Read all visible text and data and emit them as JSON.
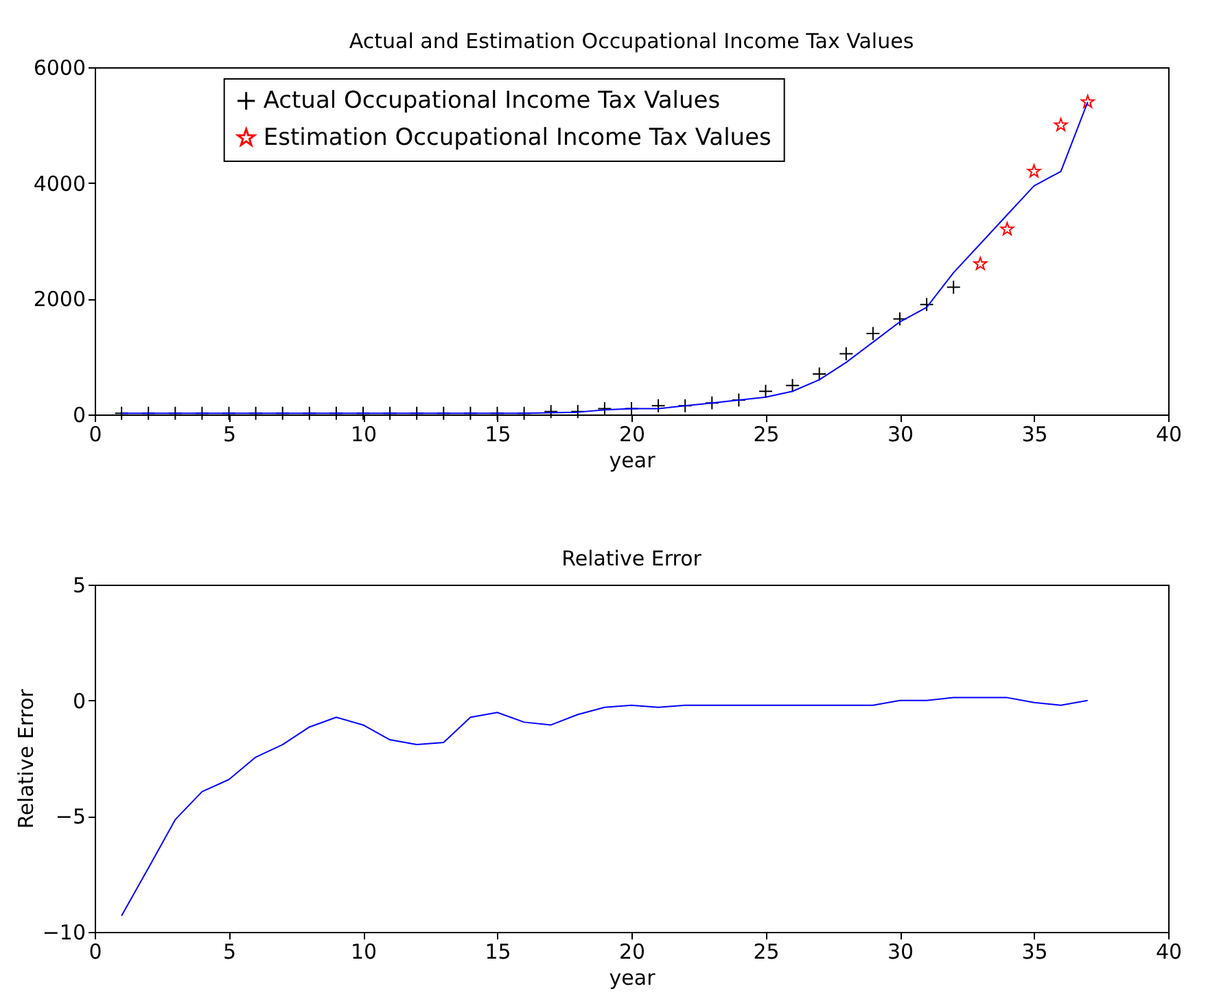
{
  "chart_data": [
    {
      "type": "scatter",
      "title": "Actual and Estimation Occupational Income Tax Values",
      "xlabel": "year",
      "xlim": [
        0,
        40
      ],
      "xticks": [
        0,
        5,
        10,
        15,
        20,
        25,
        30,
        35,
        40
      ],
      "ylim": [
        0,
        6000
      ],
      "yticks": [
        0,
        2000,
        4000,
        6000
      ],
      "grid": false,
      "legend": "top",
      "series": [
        {
          "name": "Actual Occupational Income Tax Values",
          "marker": "cross",
          "color": "#000000",
          "x": [
            1,
            2,
            3,
            4,
            5,
            6,
            7,
            8,
            9,
            10,
            11,
            12,
            13,
            14,
            15,
            16,
            17,
            18,
            19,
            20,
            21,
            22,
            23,
            24,
            25,
            26,
            27,
            28,
            29,
            30,
            31,
            32
          ],
          "values": [
            20,
            20,
            20,
            20,
            20,
            20,
            20,
            20,
            20,
            20,
            20,
            20,
            20,
            20,
            20,
            20,
            50,
            50,
            100,
            100,
            150,
            150,
            200,
            250,
            400,
            500,
            700,
            1050,
            1400,
            1650,
            1900,
            2200
          ]
        },
        {
          "name": "Estimation Occupational Income Tax Values",
          "marker": "star",
          "color": "#ff0000",
          "x": [
            33,
            34,
            35,
            36,
            37
          ],
          "values": [
            2600,
            3200,
            4200,
            5000,
            5400
          ]
        },
        {
          "type": "line",
          "color": "#0000ff",
          "line_style": "solid",
          "marker": "none",
          "x": [
            1,
            2,
            3,
            4,
            5,
            6,
            7,
            8,
            9,
            10,
            11,
            12,
            13,
            14,
            15,
            16,
            17,
            18,
            19,
            20,
            21,
            22,
            23,
            24,
            25,
            26,
            27,
            28,
            29,
            30,
            31,
            32,
            33,
            34,
            35,
            36,
            37
          ],
          "values": [
            20,
            20,
            20,
            20,
            20,
            20,
            20,
            20,
            20,
            20,
            20,
            20,
            20,
            20,
            20,
            20,
            30,
            40,
            80,
            100,
            100,
            150,
            200,
            250,
            300,
            400,
            600,
            900,
            1250,
            1600,
            1850,
            2450,
            2950,
            3450,
            3950,
            4200,
            5400
          ]
        }
      ]
    },
    {
      "type": "line",
      "title": "Relative Error",
      "xlabel": "year",
      "ylabel": "Relative Error",
      "xlim": [
        0,
        40
      ],
      "xticks": [
        0,
        5,
        10,
        15,
        20,
        25,
        30,
        35,
        40
      ],
      "ylim": [
        -10,
        5
      ],
      "yticks": [
        -10,
        -5,
        0,
        5
      ],
      "grid": false,
      "legend": false,
      "series": [
        {
          "color": "#0000ff",
          "line_style": "solid",
          "marker": "none",
          "x": [
            1,
            2,
            3,
            4,
            5,
            6,
            7,
            8,
            9,
            10,
            11,
            12,
            13,
            14,
            15,
            16,
            17,
            18,
            19,
            20,
            21,
            22,
            23,
            24,
            25,
            26,
            27,
            28,
            29,
            30,
            31,
            32,
            33,
            34,
            35,
            36,
            37
          ],
          "values": [
            -9.3,
            -7.24,
            -5.15,
            -3.94,
            -3.42,
            -2.45,
            -1.91,
            -1.15,
            -0.73,
            -1.06,
            -1.7,
            -1.91,
            -1.82,
            -0.73,
            -0.52,
            -0.94,
            -1.06,
            -0.61,
            -0.3,
            -0.21,
            -0.3,
            -0.21,
            -0.21,
            -0.21,
            -0.21,
            -0.21,
            -0.21,
            -0.21,
            -0.21,
            0,
            0,
            0.12,
            0.12,
            0.12,
            -0.09,
            -0.21,
            0
          ]
        }
      ]
    }
  ]
}
